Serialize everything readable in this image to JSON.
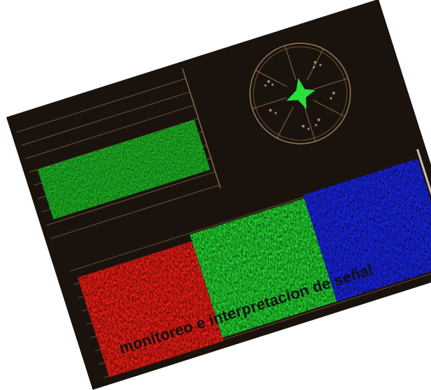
{
  "caption": "monitoreo  e interpretacion de señal",
  "scopes": {
    "waveform_luma": {
      "name": "luma-waveform",
      "trace_color": "#22d22a"
    },
    "vectorscope": {
      "name": "vectorscope",
      "trace_color": "#27e03a"
    },
    "rgb_parade": [
      {
        "channel": "red",
        "trace_color": "#f21d16"
      },
      {
        "channel": "green",
        "trace_color": "#22d530"
      },
      {
        "channel": "blue",
        "trace_color": "#1a24e8"
      }
    ]
  },
  "colors": {
    "panel_background": "#1a130d",
    "graticule": "#8a6a4a",
    "page_background": "#ffffff"
  }
}
